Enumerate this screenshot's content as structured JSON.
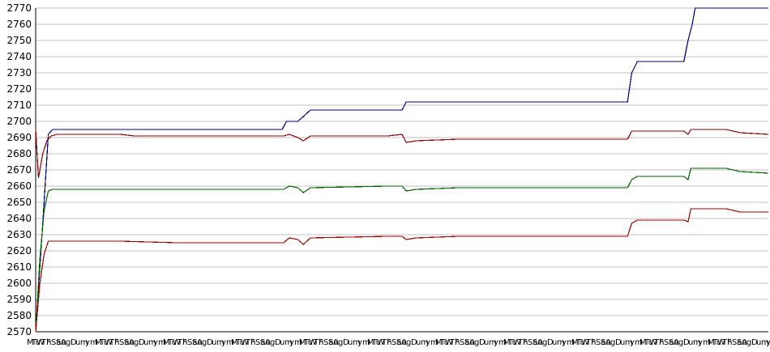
{
  "chart_data": {
    "type": "line",
    "title": "",
    "xlabel": "",
    "ylabel": "",
    "ylim": [
      2570,
      2770
    ],
    "ytick_step": 10,
    "grid": "horizontal",
    "legend": "none",
    "x_tick_label_fragments": [
      "M",
      "Tu",
      "W",
      "Th",
      "F",
      "Sa",
      "Su",
      "A",
      "g",
      "D",
      "u",
      "m",
      "y",
      "m"
    ],
    "series": [
      {
        "color": "#000080",
        "points": [
          [
            0,
            2570
          ],
          [
            3,
            2610
          ],
          [
            6,
            2650
          ],
          [
            9,
            2692
          ],
          [
            12,
            2695
          ],
          [
            100,
            2695
          ],
          [
            175,
            2695
          ],
          [
            178,
            2700
          ],
          [
            186,
            2700
          ],
          [
            190,
            2703
          ],
          [
            195,
            2707
          ],
          [
            260,
            2707
          ],
          [
            263,
            2712
          ],
          [
            420,
            2712
          ],
          [
            423,
            2730
          ],
          [
            427,
            2737
          ],
          [
            460,
            2737
          ],
          [
            463,
            2750
          ],
          [
            466,
            2760
          ],
          [
            468,
            2770
          ],
          [
            520,
            2770
          ]
        ]
      },
      {
        "color": "#8b0000",
        "points": [
          [
            0,
            2695
          ],
          [
            2,
            2665
          ],
          [
            5,
            2680
          ],
          [
            8,
            2688
          ],
          [
            11,
            2691
          ],
          [
            15,
            2692
          ],
          [
            60,
            2692
          ],
          [
            70,
            2691
          ],
          [
            100,
            2691
          ],
          [
            176,
            2691
          ],
          [
            180,
            2692
          ],
          [
            186,
            2690
          ],
          [
            190,
            2688
          ],
          [
            195,
            2691
          ],
          [
            250,
            2691
          ],
          [
            260,
            2692
          ],
          [
            263,
            2687
          ],
          [
            270,
            2688
          ],
          [
            300,
            2689
          ],
          [
            350,
            2689
          ],
          [
            420,
            2689
          ],
          [
            423,
            2694
          ],
          [
            460,
            2694
          ],
          [
            463,
            2692
          ],
          [
            465,
            2695
          ],
          [
            490,
            2695
          ],
          [
            500,
            2693
          ],
          [
            520,
            2692
          ]
        ]
      },
      {
        "color": "#006400",
        "points": [
          [
            0,
            2570
          ],
          [
            3,
            2615
          ],
          [
            6,
            2645
          ],
          [
            9,
            2657
          ],
          [
            12,
            2658
          ],
          [
            60,
            2658
          ],
          [
            100,
            2658
          ],
          [
            176,
            2658
          ],
          [
            180,
            2660
          ],
          [
            186,
            2659
          ],
          [
            190,
            2656
          ],
          [
            195,
            2659
          ],
          [
            250,
            2660
          ],
          [
            260,
            2660
          ],
          [
            263,
            2657
          ],
          [
            270,
            2658
          ],
          [
            300,
            2659
          ],
          [
            350,
            2659
          ],
          [
            420,
            2659
          ],
          [
            423,
            2664
          ],
          [
            427,
            2666
          ],
          [
            460,
            2666
          ],
          [
            463,
            2664
          ],
          [
            465,
            2671
          ],
          [
            490,
            2671
          ],
          [
            500,
            2669
          ],
          [
            520,
            2668
          ]
        ]
      },
      {
        "color": "#a00000",
        "points": [
          [
            0,
            2570
          ],
          [
            3,
            2600
          ],
          [
            6,
            2618
          ],
          [
            9,
            2626
          ],
          [
            60,
            2626
          ],
          [
            100,
            2625
          ],
          [
            176,
            2625
          ],
          [
            180,
            2628
          ],
          [
            186,
            2627
          ],
          [
            190,
            2624
          ],
          [
            195,
            2628
          ],
          [
            250,
            2629
          ],
          [
            260,
            2629
          ],
          [
            263,
            2627
          ],
          [
            270,
            2628
          ],
          [
            300,
            2629
          ],
          [
            350,
            2629
          ],
          [
            420,
            2629
          ],
          [
            423,
            2637
          ],
          [
            427,
            2639
          ],
          [
            460,
            2639
          ],
          [
            463,
            2638
          ],
          [
            465,
            2646
          ],
          [
            490,
            2646
          ],
          [
            500,
            2644
          ],
          [
            520,
            2644
          ]
        ]
      }
    ],
    "x_max": 520
  }
}
